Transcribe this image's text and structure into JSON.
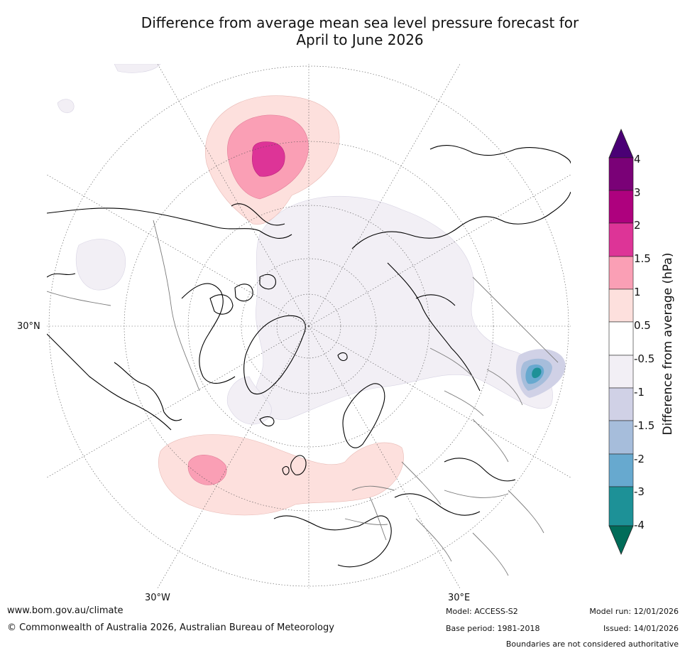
{
  "header": {
    "title_line1": "Difference from average mean sea level pressure forecast for",
    "title_line2": "April to June 2026"
  },
  "map": {
    "projection": "north-polar-stereographic",
    "lon_labels": [
      "30°N",
      "30°W",
      "30°E"
    ],
    "anomaly_regions": [
      {
        "name": "north-pacific-high",
        "level": "1.5 to 2",
        "color": "#dd3497"
      },
      {
        "name": "north-atlantic-high",
        "level": "1 to 1.5",
        "color": "#fa9fb5"
      },
      {
        "name": "europe-positive",
        "level": "0.5 to 1",
        "color": "#fde0dd"
      },
      {
        "name": "arctic-negative",
        "level": "-0.5 to -1",
        "color": "#f2eff5"
      },
      {
        "name": "central-asia-low",
        "level": "-3 to -4",
        "color": "#1d9197"
      }
    ]
  },
  "colorbar": {
    "title": "Difference from average (hPa)",
    "ticks": [
      "4",
      "3",
      "2",
      "1.5",
      "1",
      "0.5",
      "-0.5",
      "-1",
      "-1.5",
      "-2",
      "-3",
      "-4"
    ],
    "colors": [
      "#4a0075",
      "#7a0177",
      "#ae017e",
      "#dd3497",
      "#fa9fb5",
      "#fde0dd",
      "#ffffff",
      "#f2eff5",
      "#d0d1e6",
      "#a6bddb",
      "#67a9cf",
      "#1d9197",
      "#016c59"
    ]
  },
  "footer": {
    "website": "www.bom.gov.au/climate",
    "copyright": "© Commonwealth of Australia 2026, Australian Bureau of Meteorology",
    "model": "Model: ACCESS-S2",
    "base_period": "Base period: 1981-2018",
    "model_run": "Model run: 12/01/2026",
    "issued": "Issued: 14/01/2026",
    "boundaries_note": "Boundaries are not considered authoritative"
  }
}
